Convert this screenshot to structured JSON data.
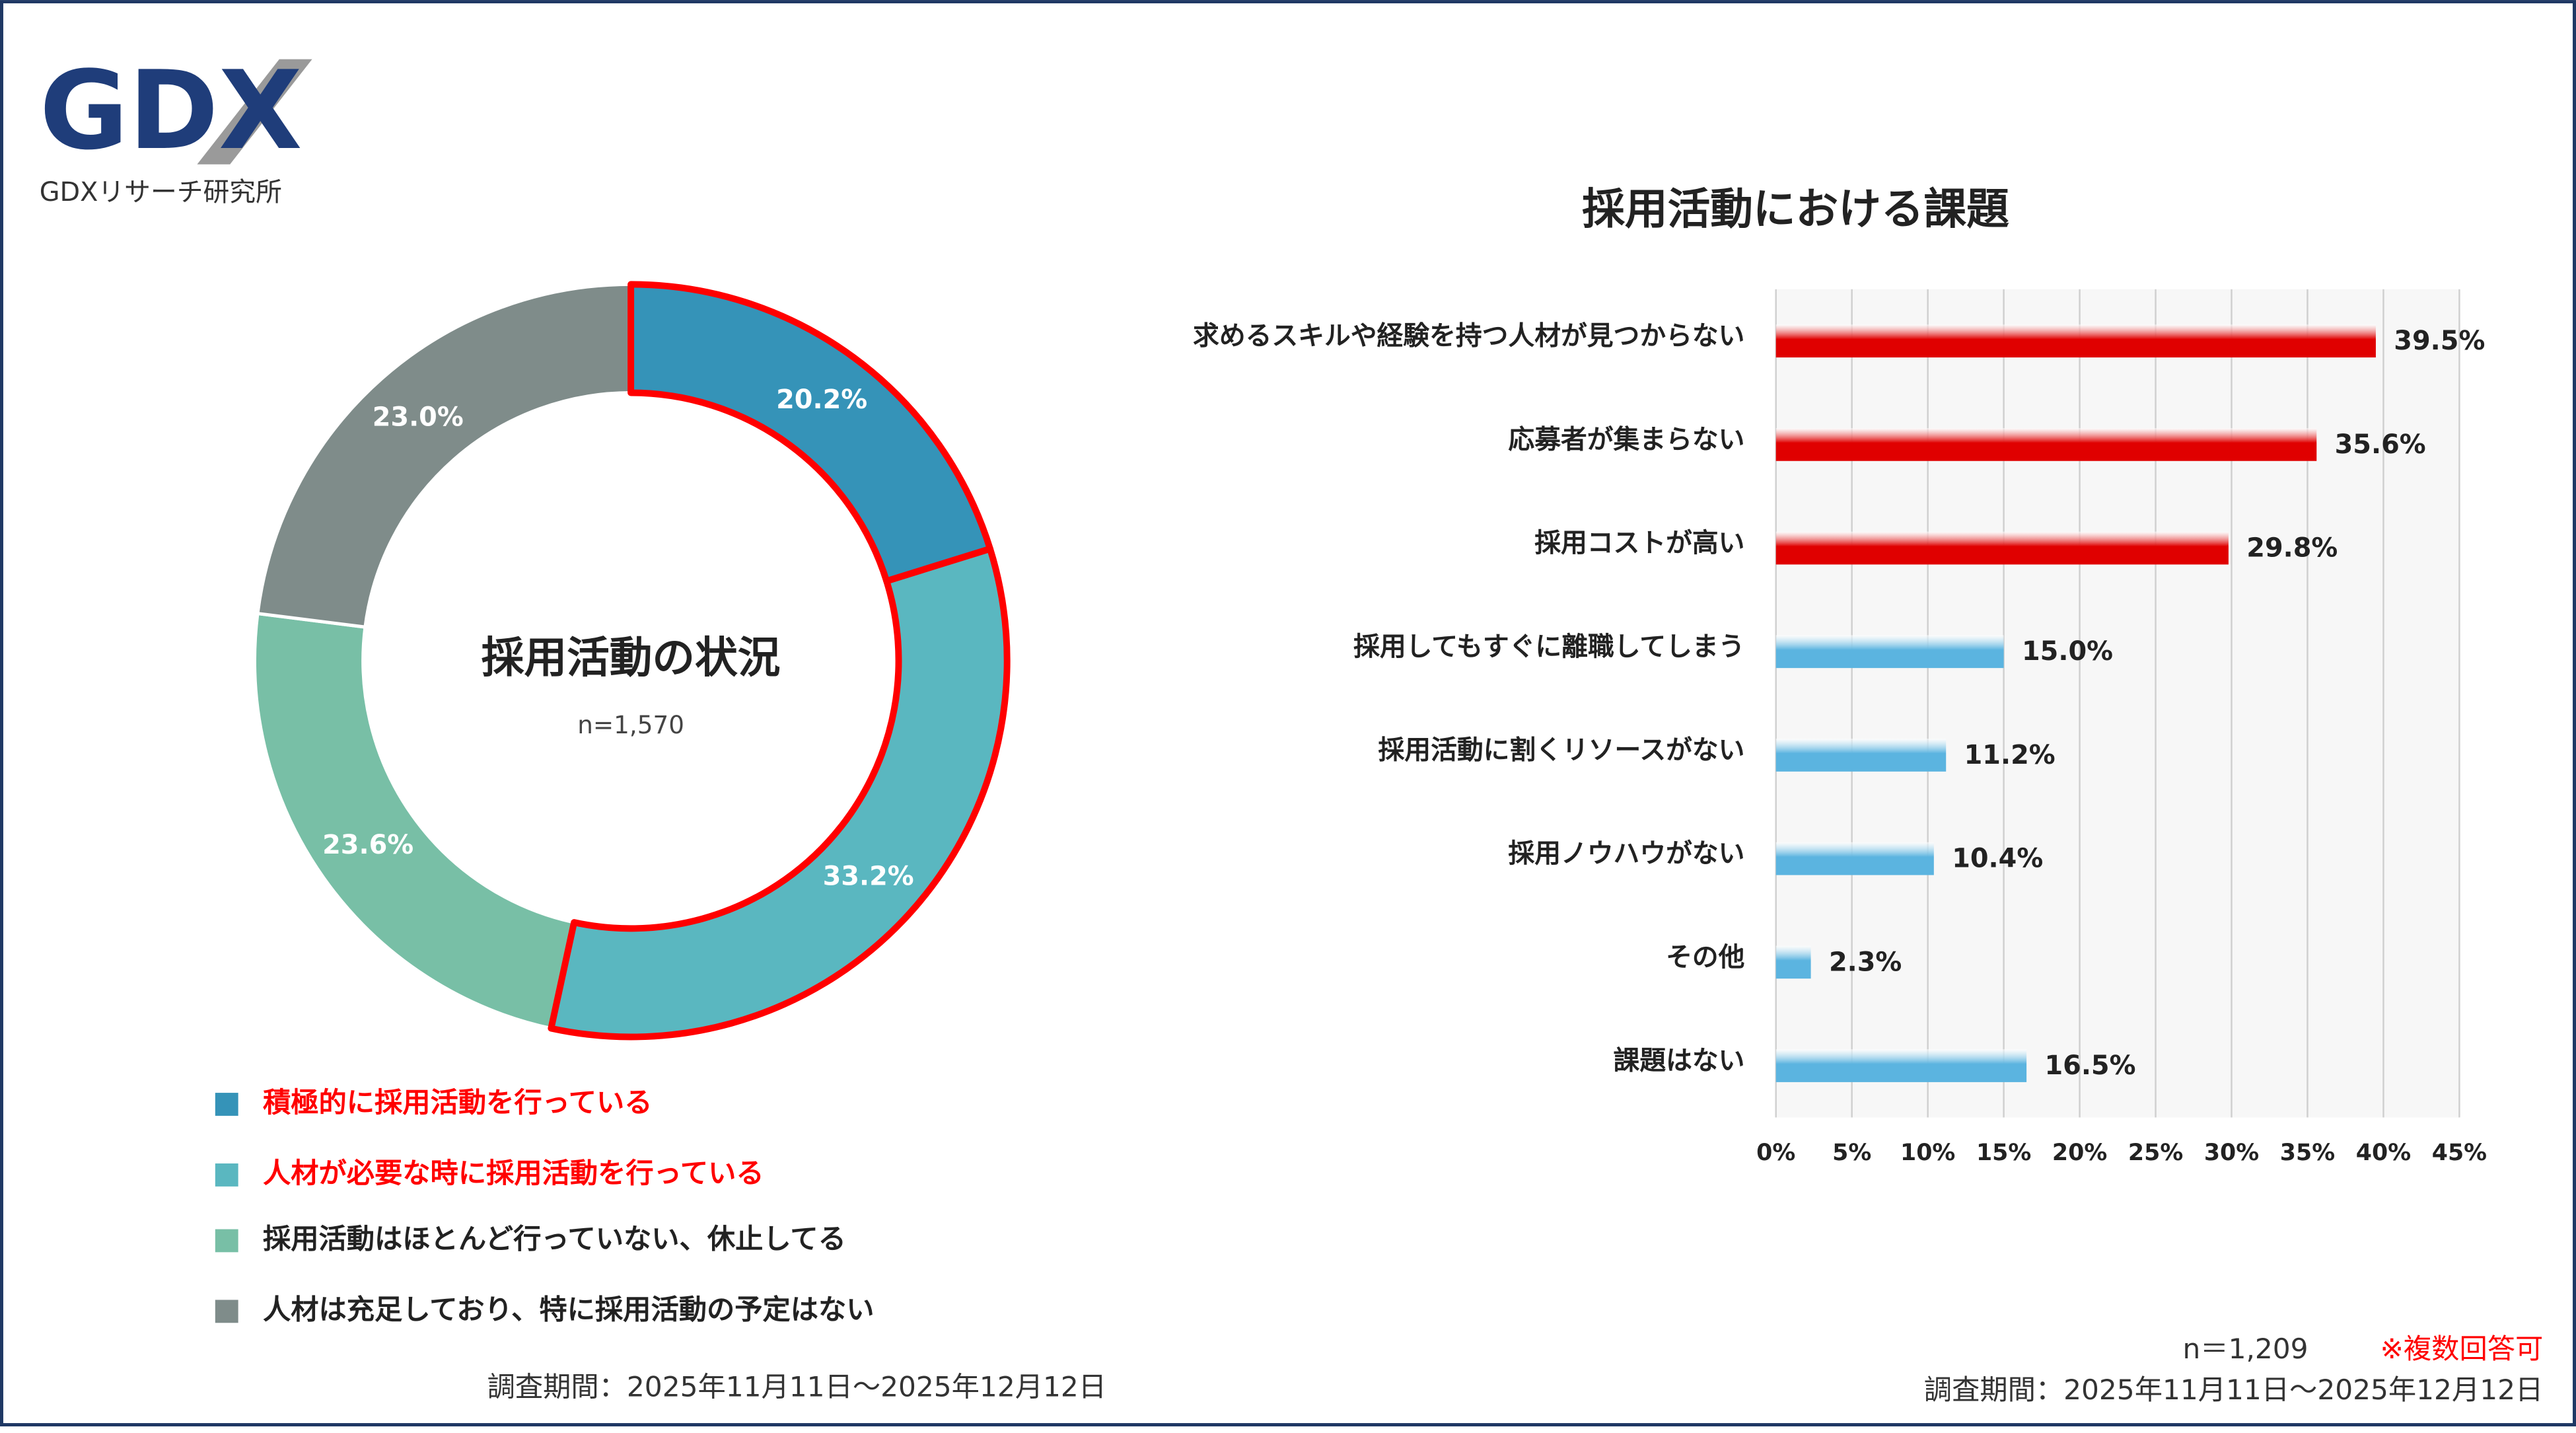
{
  "logo": {
    "mark": "GDX",
    "name": "GDXリサーチ研究所"
  },
  "chart_data": [
    {
      "type": "donut",
      "title": "採用活動の状況",
      "subtitle": "n=1,570",
      "categories": [
        "積極的に採用活動を行っている",
        "人材が必要な時に採用活動を行っている",
        "採用活動はほとんど行っていない、休止してる",
        "人材は充足しており、特に採用活動の予定はない"
      ],
      "values": [
        20.2,
        33.2,
        23.6,
        23.0
      ],
      "value_labels": [
        "20.2%",
        "33.2%",
        "23.6%",
        "23.0%"
      ],
      "colors": [
        "#3593b8",
        "#5ab7c0",
        "#78bfa6",
        "#7f8c8a"
      ],
      "highlight": {
        "color": "#ff0000",
        "indices": [
          0,
          1
        ]
      },
      "footnote": "調査期間：2025年11月11日～2025年12月12日"
    },
    {
      "type": "hbar",
      "title": "採用活動における課題",
      "categories": [
        "求めるスキルや経験を持つ人材が見つからない",
        "応募者が集まらない",
        "採用コストが高い",
        "採用してもすぐに離職してしまう",
        "採用活動に割くリソースがない",
        "採用ノウハウがない",
        "その他",
        "課題はない"
      ],
      "values": [
        39.5,
        35.6,
        29.8,
        15.0,
        11.2,
        10.4,
        2.3,
        16.5
      ],
      "value_labels": [
        "39.5%",
        "35.6%",
        "29.8%",
        "15.0%",
        "11.2%",
        "10.4%",
        "2.3%",
        "16.5%"
      ],
      "colors": [
        "#e00000",
        "#e00000",
        "#e00000",
        "#5bb4e0",
        "#5bb4e0",
        "#5bb4e0",
        "#5bb4e0",
        "#5bb4e0"
      ],
      "xlim": [
        0,
        45
      ],
      "xticks": [
        {
          "value": 0,
          "label": "0%"
        },
        {
          "value": 5,
          "label": "5%"
        },
        {
          "value": 10,
          "label": "10%"
        },
        {
          "value": 15,
          "label": "15%"
        },
        {
          "value": 20,
          "label": "20%"
        },
        {
          "value": 25,
          "label": "25%"
        },
        {
          "value": 30,
          "label": "30%"
        },
        {
          "value": 35,
          "label": "35%"
        },
        {
          "value": 40,
          "label": "40%"
        },
        {
          "value": 45,
          "label": "45%"
        }
      ],
      "grid": true,
      "sample": "n＝1,209",
      "note": "※複数回答可",
      "footnote": "調査期間：2025年11月11日～2025年12月12日"
    }
  ]
}
